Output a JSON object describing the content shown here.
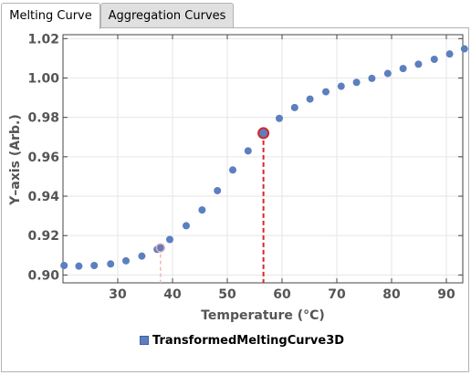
{
  "tabs": [
    {
      "label": "Melting Curve",
      "active": true
    },
    {
      "label": "Aggregation Curves",
      "active": false
    }
  ],
  "legend": {
    "label": "TransformedMeltingCurve3D"
  },
  "colors": {
    "points": "#5b7fbf",
    "highlight": "#d62728",
    "guide_faint": "#f4b6b6"
  },
  "chart_data": {
    "type": "scatter",
    "xlabel": "Temperature  (°C)",
    "ylabel": "Y–axis  (Arb.)",
    "xlim": [
      20,
      93
    ],
    "ylim": [
      0.896,
      1.022
    ],
    "xticks": [
      30,
      40,
      50,
      60,
      70,
      80,
      90
    ],
    "yticks": [
      0.9,
      0.92,
      0.94,
      0.96,
      0.98,
      1.0,
      1.02
    ],
    "ytick_labels": [
      "0.90",
      "0.92",
      "0.94",
      "0.96",
      "0.98",
      "1.00",
      "1.02"
    ],
    "series": [
      {
        "x": [
          20.2,
          22.9,
          25.7,
          28.7,
          31.5,
          34.4,
          37.2,
          39.5,
          42.5,
          45.4,
          48.2,
          51.0,
          53.8,
          56.6,
          59.5,
          62.3,
          65.1,
          68.0,
          70.8,
          73.6,
          76.4,
          79.3,
          82.1,
          84.9,
          87.8,
          90.6,
          93.3
        ],
        "y": [
          0.9048,
          0.9045,
          0.9048,
          0.9056,
          0.9072,
          0.9096,
          0.913,
          0.918,
          0.925,
          0.933,
          0.9428,
          0.9533,
          0.963,
          0.972,
          0.9795,
          0.985,
          0.9893,
          0.993,
          0.9958,
          0.9978,
          0.9998,
          1.0023,
          1.0048,
          1.007,
          1.0095,
          1.0122,
          1.0148
        ]
      }
    ],
    "highlight": {
      "x": 56.6,
      "y": 0.972
    },
    "secondary_marker": {
      "x": 37.8,
      "y": 0.9138
    }
  }
}
